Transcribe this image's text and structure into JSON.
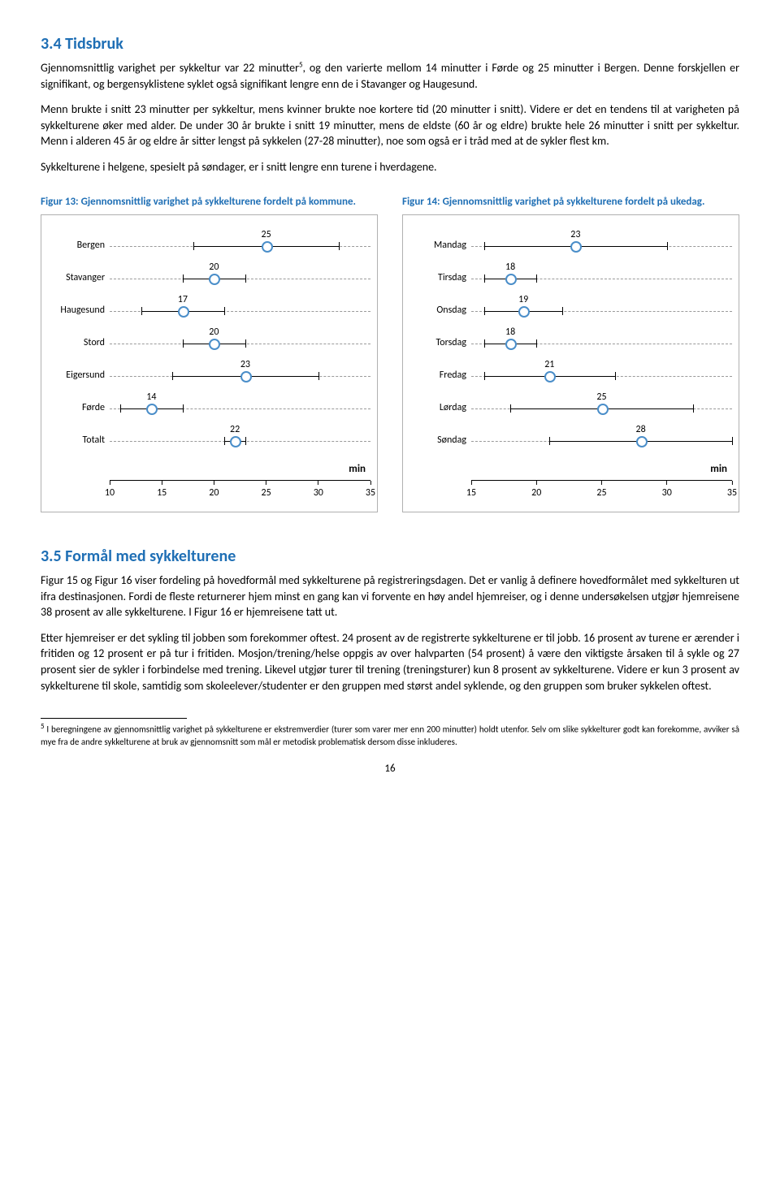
{
  "section1": {
    "heading": "3.4  Tidsbruk",
    "p1a": "Gjennomsnittlig varighet per sykkeltur var 22 minutter",
    "p1sup": "5",
    "p1b": ", og den varierte mellom 14 minutter i Førde og 25 minutter i Bergen. Denne forskjellen er signifikant, og bergensyklistene syklet også signifikant lengre enn de i Stavanger og Haugesund.",
    "p2": "Menn brukte i snitt 23 minutter per sykkeltur, mens kvinner brukte noe kortere tid (20 minutter i snitt). Videre er det en tendens til at varigheten på sykkelturene øker med alder. De under 30 år brukte i snitt 19 minutter, mens de eldste (60 år og eldre) brukte hele 26 minutter i snitt per sykkeltur. Menn i alderen 45 år og eldre år sitter lengst på sykkelen (27-28 minutter), noe som også er i tråd med at de sykler flest km.",
    "p3": "Sykkelturene i helgene, spesielt på søndager, er i snitt lengre enn turene i hverdagene."
  },
  "figure13": {
    "caption": "Figur 13: Gjennomsnittlig varighet på sykkelturene fordelt på kommune.",
    "unit": "min",
    "xmin": 10,
    "xmax": 35,
    "ticks": [
      10,
      15,
      20,
      25,
      30,
      35
    ],
    "rows": [
      {
        "label": "Bergen",
        "lo": 18,
        "v": 25,
        "hi": 32
      },
      {
        "label": "Stavanger",
        "lo": 17,
        "v": 20,
        "hi": 23
      },
      {
        "label": "Haugesund",
        "lo": 13,
        "v": 17,
        "hi": 21
      },
      {
        "label": "Stord",
        "lo": 17,
        "v": 20,
        "hi": 23
      },
      {
        "label": "Eigersund",
        "lo": 16,
        "v": 23,
        "hi": 30
      },
      {
        "label": "Førde",
        "lo": 11,
        "v": 14,
        "hi": 17
      },
      {
        "label": "Totalt",
        "lo": 21,
        "v": 22,
        "hi": 23
      }
    ]
  },
  "figure14": {
    "caption": "Figur 14: Gjennomsnittlig varighet på sykkelturene fordelt på ukedag.",
    "unit": "min",
    "xmin": 15,
    "xmax": 35,
    "ticks": [
      15,
      20,
      25,
      30,
      35
    ],
    "rows": [
      {
        "label": "Mandag",
        "lo": 16,
        "v": 23,
        "hi": 30
      },
      {
        "label": "Tirsdag",
        "lo": 16,
        "v": 18,
        "hi": 20
      },
      {
        "label": "Onsdag",
        "lo": 16,
        "v": 19,
        "hi": 22
      },
      {
        "label": "Torsdag",
        "lo": 16,
        "v": 18,
        "hi": 20
      },
      {
        "label": "Fredag",
        "lo": 16,
        "v": 21,
        "hi": 26
      },
      {
        "label": "Lørdag",
        "lo": 18,
        "v": 25,
        "hi": 32
      },
      {
        "label": "Søndag",
        "lo": 21,
        "v": 28,
        "hi": 35
      }
    ]
  },
  "section2": {
    "heading": "3.5  Formål med sykkelturene",
    "p1": "Figur 15 og Figur 16 viser fordeling på hovedformål med sykkelturene på registreringsdagen. Det er vanlig å definere hovedformålet med sykkelturen ut ifra destinasjonen. Fordi de fleste returnerer hjem minst en gang kan vi forvente en høy andel hjemreiser, og i denne undersøkelsen utgjør hjemreisene 38 prosent av alle sykkelturene. I Figur 16 er hjemreisene tatt ut.",
    "p2": "Etter hjemreiser er det sykling til jobben som forekommer oftest. 24 prosent av de registrerte sykkelturene er til jobb. 16 prosent av turene er ærender i fritiden og 12 prosent er på tur i fritiden. Mosjon/trening/helse oppgis av over halvparten (54 prosent) å være den viktigste årsaken til å sykle og 27 prosent sier de sykler i forbindelse med trening. Likevel utgjør turer til trening (treningsturer) kun 8 prosent av sykkelturene. Videre er kun 3 prosent av sykkelturene til skole, samtidig som skoleelever/studenter er den gruppen med størst andel syklende, og den gruppen som bruker sykkelen oftest."
  },
  "footnote": {
    "sup": "5",
    "text": " I beregningene av gjennomsnittlig varighet på sykkelturene er ekstremverdier (turer som varer mer enn 200 minutter) holdt utenfor. Selv om slike sykkelturer godt kan forekomme, avviker så mye fra de andre sykkelturene at bruk av gjennomsnitt som mål er metodisk problematisk dersom disse inkluderes."
  },
  "pageNumber": "16",
  "colors": {
    "heading": "#1f6fb5",
    "marker_border": "#4a8ec9",
    "marker_fill": "#ffffff",
    "dash": "#9a9a9a",
    "text": "#000000"
  }
}
